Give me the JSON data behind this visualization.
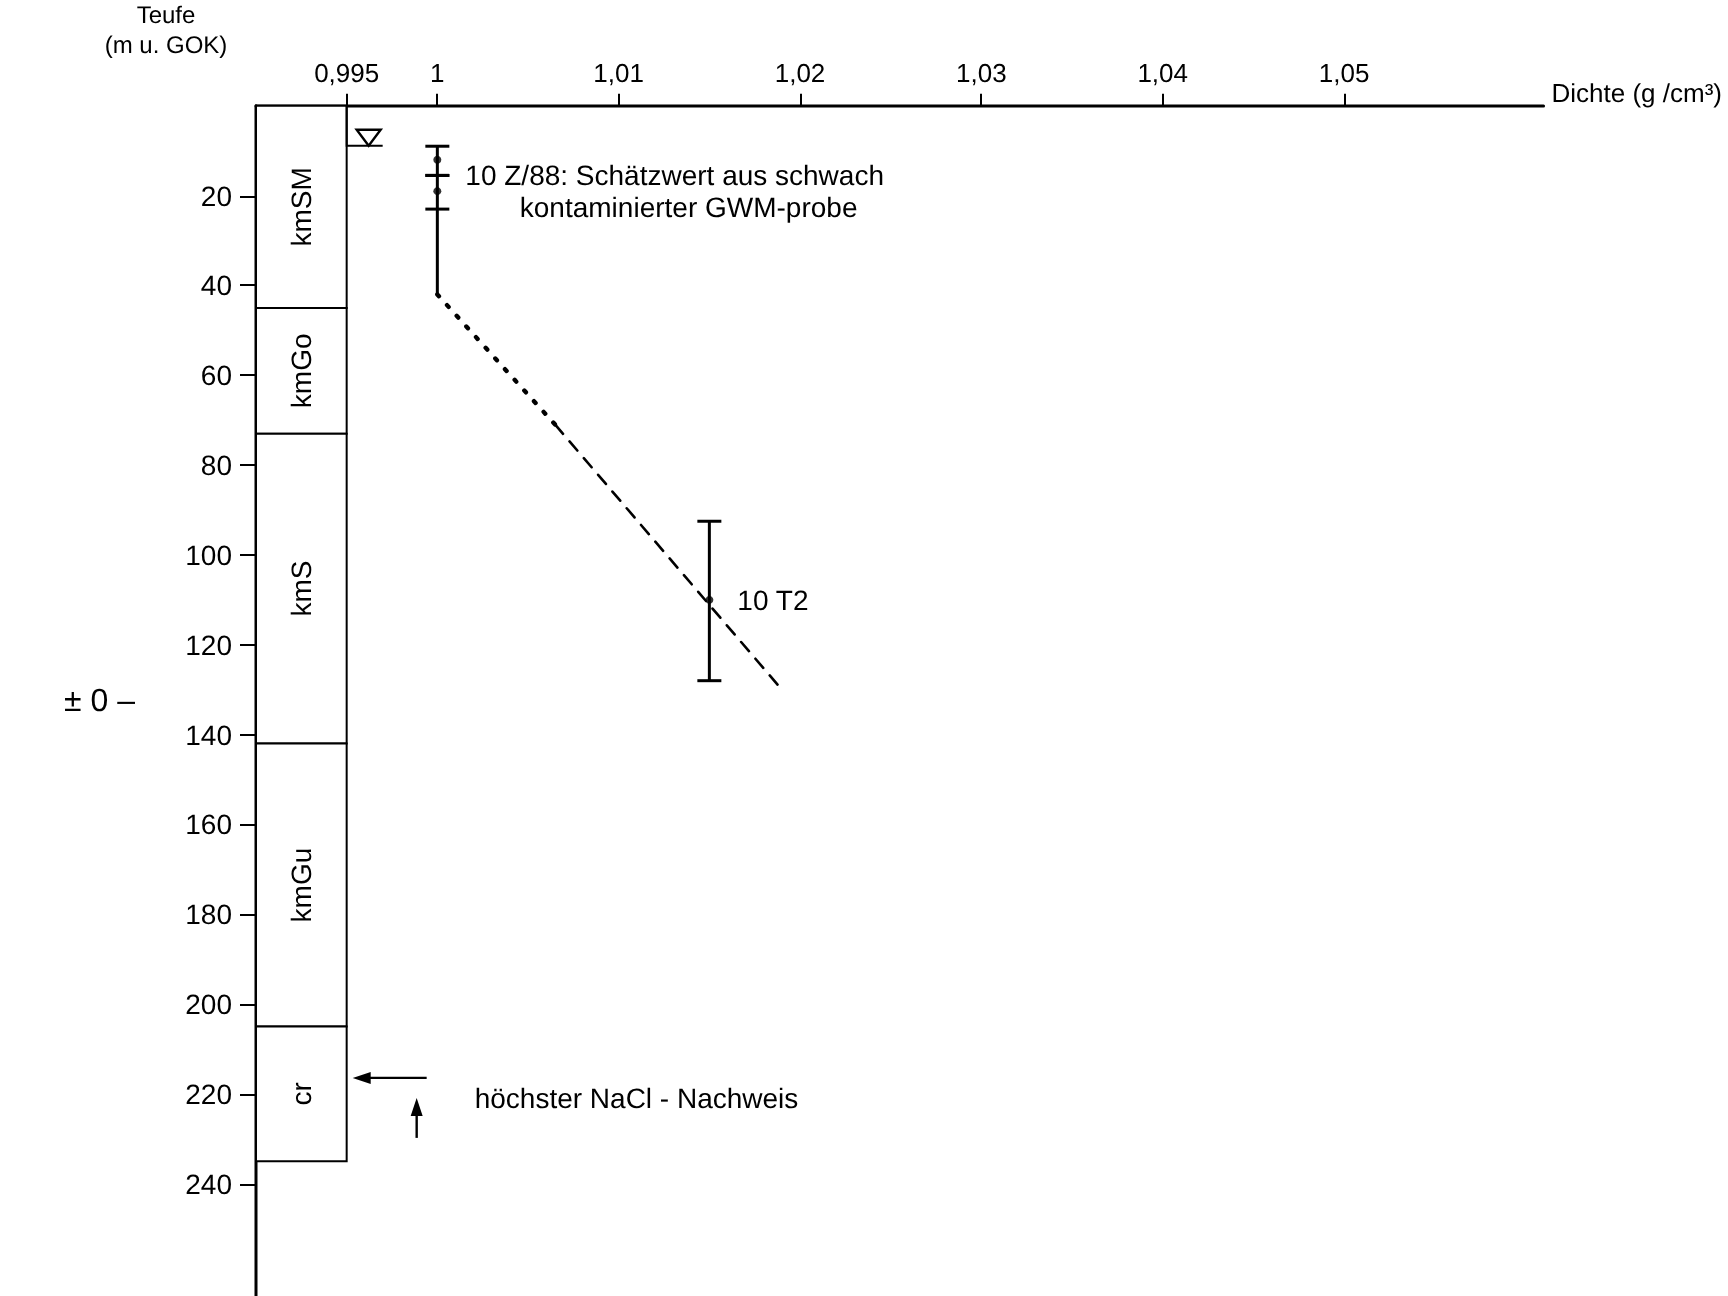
{
  "chart_data": {
    "type": "line",
    "xlabel": "Dichte (g /cm³)",
    "ylabel": "Teufe\n(m u. GOK)",
    "xlim": [
      0.99,
      1.061
    ],
    "xticks": [
      {
        "value": 0.995,
        "label": "0,995"
      },
      1,
      {
        "value": 1.01,
        "label": "1,01"
      },
      {
        "value": 1.02,
        "label": "1,02"
      },
      {
        "value": 1.03,
        "label": "1,03"
      },
      {
        "value": 1.04,
        "label": "1,04"
      },
      {
        "value": 1.05,
        "label": "1,05"
      }
    ],
    "ylim": [
      265,
      0
    ],
    "yticks": [
      20,
      40,
      60,
      80,
      100,
      120,
      140,
      160,
      180,
      200,
      220,
      240
    ],
    "grid": false,
    "marker": "none",
    "series": [
      {
        "color": "#000000",
        "line_style": "solid",
        "x": [
          1,
          1
        ],
        "values": [
          23,
          42
        ]
      },
      {
        "color": "#000000",
        "line_style": "dotted",
        "x": [
          1,
          1.0065
        ],
        "values": [
          42,
          71
        ]
      },
      {
        "color": "#000000",
        "line_style": "dashed",
        "x": [
          1.0065,
          1.019
        ],
        "values": [
          71,
          130
        ]
      },
      {
        "type": "scatter",
        "color": "#000000",
        "marker": "circle",
        "x": [
          1,
          1
        ],
        "values": [
          12,
          19
        ],
        "errors": [
          [
            9,
            15.5
          ],
          [
            15.5,
            23
          ]
        ]
      },
      {
        "type": "scatter",
        "color": "#000000",
        "marker": "circle",
        "x": [
          1.015
        ],
        "values": [
          110
        ],
        "errors": [
          [
            92.5,
            128
          ]
        ]
      }
    ],
    "bands": [
      {
        "axis": "y",
        "from": 0,
        "to": 45,
        "label": "kmSM"
      },
      {
        "axis": "y",
        "from": 45,
        "to": 73,
        "label": "kmGo"
      },
      {
        "axis": "y",
        "from": 73,
        "to": 142,
        "label": "kmS"
      },
      {
        "axis": "y",
        "from": 142,
        "to": 205,
        "label": "kmGu"
      },
      {
        "axis": "y",
        "from": 205,
        "to": 235,
        "label": "cr"
      }
    ],
    "annotations": [
      {
        "text": "10 Z/88: Schätzwert aus schwach\n       kontaminierter GWM-probe",
        "x": 1,
        "y": 15.5
      },
      {
        "text": "10 T2",
        "x": 1.015,
        "y": 110
      },
      "höchster NaCl - Nachweis",
      "± 0 –"
    ]
  }
}
